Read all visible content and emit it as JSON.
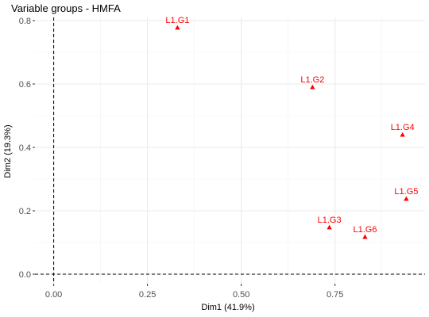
{
  "chart_data": {
    "type": "scatter",
    "title": "Variable groups - HMFA",
    "xlabel": "Dim1 (41.9%)",
    "ylabel": "Dim2 (19.3%)",
    "xlim": [
      -0.05,
      0.99
    ],
    "ylim": [
      -0.03,
      0.81
    ],
    "x_ticks": [
      0.0,
      0.25,
      0.5,
      0.75
    ],
    "x_tick_labels": [
      "0.00",
      "0.25",
      "0.50",
      "0.75"
    ],
    "y_ticks": [
      0.0,
      0.2,
      0.4,
      0.6,
      0.8
    ],
    "y_tick_labels": [
      "0.0",
      "0.2",
      "0.4",
      "0.6",
      "0.8"
    ],
    "grid": true,
    "reference_lines": {
      "x": 0,
      "y": 0,
      "style": "dashed"
    },
    "point_color": "#ff0000",
    "marker": "triangle",
    "points": [
      {
        "label": "L1.G1",
        "x": 0.33,
        "y": 0.778
      },
      {
        "label": "L1.G2",
        "x": 0.69,
        "y": 0.59
      },
      {
        "label": "L1.G4",
        "x": 0.93,
        "y": 0.44
      },
      {
        "label": "L1.G5",
        "x": 0.94,
        "y": 0.238
      },
      {
        "label": "L1.G3",
        "x": 0.735,
        "y": 0.148
      },
      {
        "label": "L1.G6",
        "x": 0.83,
        "y": 0.118
      }
    ]
  }
}
